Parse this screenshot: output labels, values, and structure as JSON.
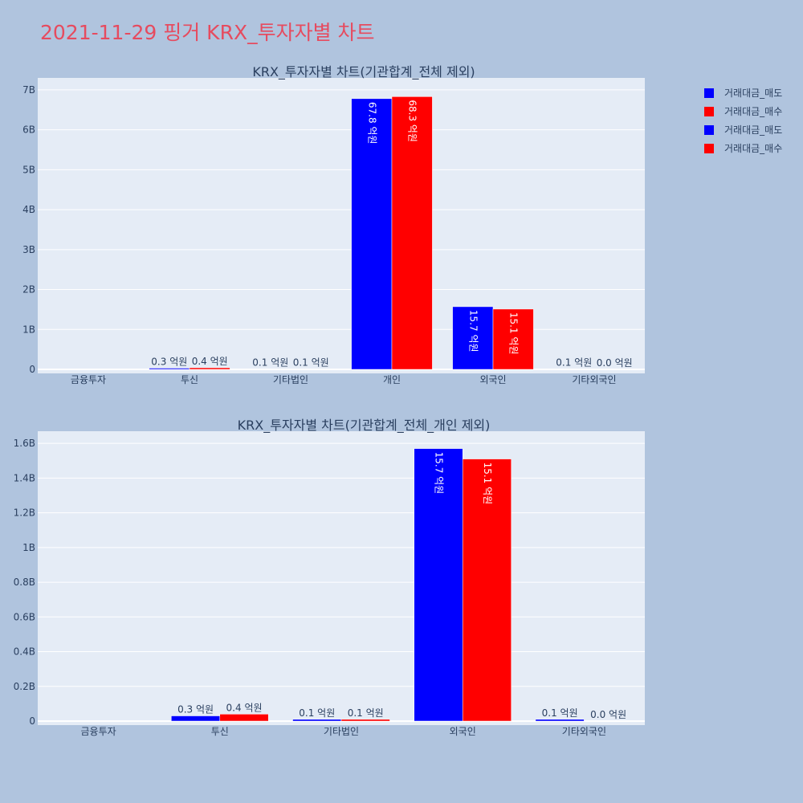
{
  "title": "2021-11-29 핑거 KRX_투자자별 차트",
  "colors": {
    "title": "#e64b5f",
    "page_bg": "#b0c4de",
    "plot_bg": "#e5ecf6",
    "text": "#2a3f5f",
    "sell": "#0000ff",
    "buy": "#ff0000"
  },
  "legend": [
    {
      "name": "거래대금_매도",
      "color": "#0000ff"
    },
    {
      "name": "거래대금_매수",
      "color": "#ff0000"
    },
    {
      "name": "거래대금_매도",
      "color": "#0000ff"
    },
    {
      "name": "거래대금_매수",
      "color": "#ff0000"
    }
  ],
  "chart_data": [
    {
      "type": "bar",
      "title": "KRX_투자자별 차트(기관합계_전체 제외)",
      "categories": [
        "금융투자",
        "투신",
        "기타법인",
        "개인",
        "외국인",
        "기타외국인"
      ],
      "ylim": [
        0,
        7.3
      ],
      "y_ticks": [
        0,
        1,
        2,
        3,
        4,
        5,
        6,
        7
      ],
      "y_tick_labels": [
        "0",
        "1B",
        "2B",
        "3B",
        "4B",
        "5B",
        "6B",
        "7B"
      ],
      "series": [
        {
          "name": "거래대금_매도",
          "color": "#0000ff",
          "values": [
            0,
            0.03,
            0.01,
            6.78,
            1.57,
            0.01
          ],
          "labels": [
            "",
            "0.3 억원",
            "0.1 억원",
            "67.8 억원",
            "15.7 억원",
            "0.1 억원"
          ]
        },
        {
          "name": "거래대금_매수",
          "color": "#ff0000",
          "values": [
            0,
            0.04,
            0.01,
            6.83,
            1.51,
            0.0
          ],
          "labels": [
            "",
            "0.4 억원",
            "0.1 억원",
            "68.3 억원",
            "15.1 억원",
            "0.0 억원"
          ]
        }
      ],
      "grid": true
    },
    {
      "type": "bar",
      "title": "KRX_투자자별 차트(기관합계_전체_개인 제외)",
      "categories": [
        "금융투자",
        "투신",
        "기타법인",
        "외국인",
        "기타외국인"
      ],
      "ylim": [
        0,
        1.67
      ],
      "y_ticks": [
        0,
        0.2,
        0.4,
        0.6,
        0.8,
        1.0,
        1.2,
        1.4,
        1.6
      ],
      "y_tick_labels": [
        "0",
        "0.2B",
        "0.4B",
        "0.6B",
        "0.8B",
        "1B",
        "1.2B",
        "1.4B",
        "1.6B"
      ],
      "series": [
        {
          "name": "거래대금_매도",
          "color": "#0000ff",
          "values": [
            0,
            0.03,
            0.01,
            1.57,
            0.01
          ],
          "labels": [
            "",
            "0.3 억원",
            "0.1 억원",
            "15.7 억원",
            "0.1 억원"
          ]
        },
        {
          "name": "거래대금_매수",
          "color": "#ff0000",
          "values": [
            0,
            0.04,
            0.01,
            1.51,
            0.0
          ],
          "labels": [
            "",
            "0.4 억원",
            "0.1 억원",
            "15.1 억원",
            "0.0 억원"
          ]
        }
      ],
      "grid": true
    }
  ]
}
